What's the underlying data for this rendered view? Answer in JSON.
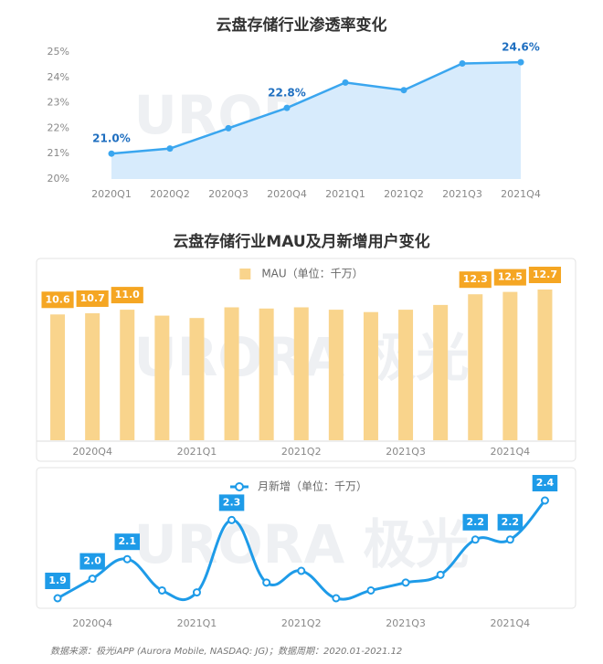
{
  "chart_data": [
    {
      "type": "line",
      "title": "云盘存储行业渗透率变化",
      "area": true,
      "color": "#3aa6ef",
      "fill": "#d7ebfc",
      "categories": [
        "2020Q1",
        "2020Q2",
        "2020Q3",
        "2020Q4",
        "2021Q1",
        "2021Q2",
        "2021Q3",
        "2021Q4"
      ],
      "values": [
        21.0,
        21.2,
        22.0,
        22.8,
        23.8,
        23.5,
        24.55,
        24.6
      ],
      "value_labels": [
        "21.0%",
        null,
        null,
        "22.8%",
        null,
        null,
        null,
        "24.6%"
      ],
      "ylim": [
        20,
        25
      ],
      "yticks": [
        {
          "value": 20,
          "label": "20%"
        },
        {
          "value": 21,
          "label": "21%"
        },
        {
          "value": 22,
          "label": "22%"
        },
        {
          "value": 23,
          "label": "23%"
        },
        {
          "value": 24,
          "label": "24%"
        },
        {
          "value": 25,
          "label": "25%"
        }
      ]
    },
    {
      "type": "bar",
      "title": "云盘存储行业MAU及月新增用户变化",
      "legend": "MAU（单位：千万）",
      "color": "#f9d48c",
      "label_color": "#f5a623",
      "categories": [
        null,
        "2020Q4",
        null,
        null,
        "2021Q1",
        null,
        null,
        "2021Q2",
        null,
        null,
        "2021Q3",
        null,
        null,
        "2021Q4",
        null
      ],
      "values": [
        10.6,
        10.7,
        11.0,
        10.5,
        10.3,
        11.2,
        11.1,
        11.2,
        11.0,
        10.8,
        11.0,
        11.4,
        12.3,
        12.5,
        12.7
      ],
      "value_labels": [
        "10.6",
        "10.7",
        "11.0",
        null,
        null,
        null,
        null,
        null,
        null,
        null,
        null,
        null,
        "12.3",
        "12.5",
        "12.7"
      ]
    },
    {
      "type": "smooth-line",
      "legend": "月新增（单位：千万）",
      "color": "#1e9be8",
      "categories": [
        null,
        "2020Q4",
        null,
        null,
        "2021Q1",
        null,
        null,
        "2021Q2",
        null,
        null,
        "2021Q3",
        null,
        null,
        "2021Q4",
        null
      ],
      "values": [
        1.9,
        2.0,
        2.1,
        1.94,
        1.93,
        2.3,
        1.98,
        2.04,
        1.9,
        1.94,
        1.98,
        2.02,
        2.2,
        2.2,
        2.4
      ],
      "value_labels": [
        "1.9",
        "2.0",
        "2.1",
        null,
        null,
        "2.3",
        null,
        null,
        null,
        null,
        null,
        null,
        "2.2",
        "2.2",
        "2.4"
      ]
    }
  ],
  "watermark": "URORA 极光",
  "source": "数据来源：极光iAPP (Aurora Mobile, NASDAQ: JG)；数据周期：2020.01-2021.12"
}
